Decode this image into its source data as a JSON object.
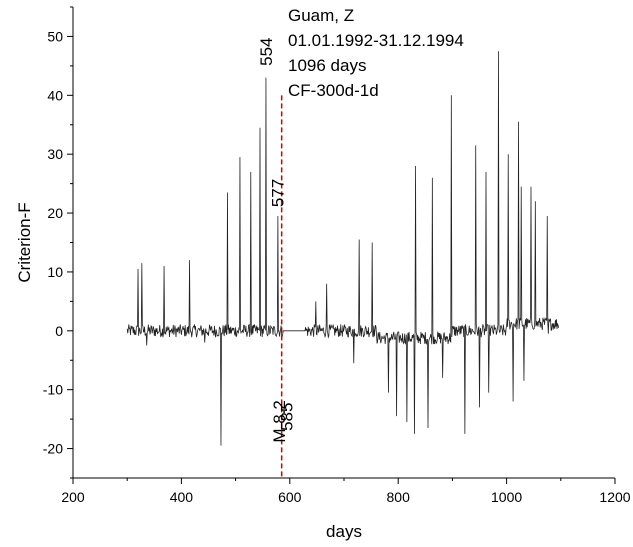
{
  "chart_data": {
    "type": "line",
    "title": "",
    "xlabel": "days",
    "ylabel": "Criterion-F",
    "xlim": [
      200,
      1200
    ],
    "ylim": [
      -25,
      55
    ],
    "x_ticks": [
      200,
      400,
      600,
      800,
      1000,
      1200
    ],
    "y_ticks": [
      -20,
      -10,
      0,
      10,
      20,
      30,
      40,
      50
    ],
    "grid": false,
    "legend": "none",
    "info_lines": [
      "Guam, Z",
      "01.01.1992-31.12.1994",
      "1096 days",
      "CF-300d-1d"
    ],
    "event_line": {
      "x": 585,
      "color": "#cc0000",
      "style": "dashed"
    },
    "annotations": [
      {
        "text": "554",
        "x": 554,
        "y": 45
      },
      {
        "text": "577",
        "x": 577,
        "y": 21
      },
      {
        "text": "M 8.2",
        "x": 580,
        "y": -19
      },
      {
        "text": "585",
        "x": 594,
        "y": -17
      }
    ],
    "series": [
      {
        "x_start": 300,
        "x_end": 1096,
        "flat_segment": {
          "x": [
            588,
            628
          ],
          "y": 0
        },
        "spikes": [
          {
            "x": 320,
            "y": 10.5
          },
          {
            "x": 327,
            "y": 11.5
          },
          {
            "x": 368,
            "y": 11
          },
          {
            "x": 415,
            "y": 12
          },
          {
            "x": 485,
            "y": 23.5
          },
          {
            "x": 508,
            "y": 29.5
          },
          {
            "x": 528,
            "y": 27
          },
          {
            "x": 545,
            "y": 34.5
          },
          {
            "x": 556,
            "y": 43
          },
          {
            "x": 578,
            "y": 19.5
          },
          {
            "x": 648,
            "y": 5
          },
          {
            "x": 668,
            "y": 8
          },
          {
            "x": 718,
            "y": 17
          },
          {
            "x": 728,
            "y": 15.5
          },
          {
            "x": 752,
            "y": 15
          },
          {
            "x": 832,
            "y": 28
          },
          {
            "x": 863,
            "y": 26
          },
          {
            "x": 898,
            "y": 40
          },
          {
            "x": 943,
            "y": 31.5
          },
          {
            "x": 962,
            "y": 27
          },
          {
            "x": 985,
            "y": 47.5
          },
          {
            "x": 1003,
            "y": 30
          },
          {
            "x": 1022,
            "y": 35.5
          },
          {
            "x": 1027,
            "y": 24.5
          },
          {
            "x": 1045,
            "y": 24.5
          },
          {
            "x": 1053,
            "y": 22
          },
          {
            "x": 1075,
            "y": 19.5
          },
          {
            "x": 336,
            "y": -2.5
          },
          {
            "x": 443,
            "y": -2
          },
          {
            "x": 473,
            "y": -19.5
          },
          {
            "x": 718,
            "y": -5.5
          },
          {
            "x": 782,
            "y": -10.5
          },
          {
            "x": 797,
            "y": -14.5
          },
          {
            "x": 816,
            "y": -15.5
          },
          {
            "x": 830,
            "y": -17.5
          },
          {
            "x": 855,
            "y": -16.5
          },
          {
            "x": 882,
            "y": -8
          },
          {
            "x": 923,
            "y": -17.5
          },
          {
            "x": 950,
            "y": -13
          },
          {
            "x": 967,
            "y": -10.5
          },
          {
            "x": 1012,
            "y": -12
          },
          {
            "x": 1032,
            "y": -8.5
          },
          {
            "x": 1077,
            "y": -0.5
          }
        ]
      }
    ]
  }
}
